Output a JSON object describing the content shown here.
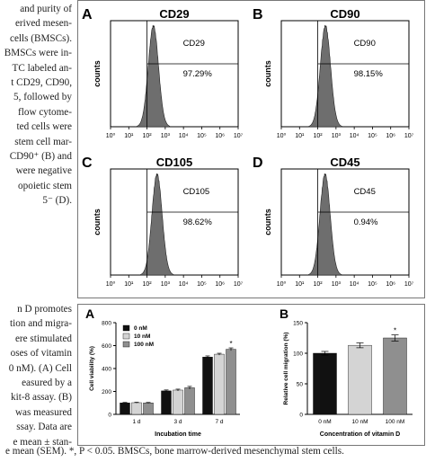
{
  "left_text_top": [
    "and purity of",
    "erived mesen-",
    "cells (BMSCs).",
    "BMSCs were in-",
    "TC labeled an-",
    "t CD29, CD90,",
    "5, followed by",
    "flow cytome-",
    "ted cells were",
    "stem cell mar-",
    "CD90⁺ (B) and",
    "were negative",
    "opoietic stem",
    "5⁻ (D)."
  ],
  "left_text_mid": [
    "n D promotes",
    "tion and migra-",
    "ere stimulated",
    "oses of vitamin",
    "0 nM). (A) Cell",
    "easured by a",
    "kit-8 assay. (B)",
    "was measured",
    "ssay. Data are",
    "e mean ± stan-"
  ],
  "caption": "e mean (SEM). *, P < 0.05. BMSCs, bone marrow-derived mesenchymal stem cells.",
  "flow_panels": [
    {
      "letter": "A",
      "title": "CD29",
      "gate_label": "CD29",
      "percent": "97.29%"
    },
    {
      "letter": "B",
      "title": "CD90",
      "gate_label": "CD90",
      "percent": "98.15%"
    },
    {
      "letter": "C",
      "title": "CD105",
      "gate_label": "CD105",
      "percent": "98.62%"
    },
    {
      "letter": "D",
      "title": "CD45",
      "gate_label": "CD45",
      "percent": "0.94%"
    }
  ],
  "flow_axes": {
    "ylabel": "counts",
    "xticks": [
      "10⁰",
      "10¹",
      "10²",
      "10³",
      "10⁴",
      "10⁵",
      "10⁶",
      "10⁷"
    ]
  },
  "colors": {
    "hist": "#6e6e6e",
    "bar_0": "#111111",
    "bar_10": "#d4d4d4",
    "bar_100": "#8f8f8f"
  },
  "chart_data": [
    {
      "type": "bar",
      "panel_letter": "A",
      "ylabel": "Cell viability (%)",
      "xlabel": "Incubation time",
      "ylim": [
        0,
        800
      ],
      "yticks": [
        "0",
        "200",
        "400",
        "600",
        "800"
      ],
      "categories": [
        "1 d",
        "3 d",
        "7 d"
      ],
      "legend": [
        "0 nM",
        "10 nM",
        "100 nM"
      ],
      "series": [
        {
          "name": "0 nM",
          "values": [
            100,
            205,
            500
          ]
        },
        {
          "name": "10 nM",
          "values": [
            102,
            212,
            525
          ]
        },
        {
          "name": "100 nM",
          "values": [
            100,
            232,
            568
          ]
        }
      ],
      "errors": [
        [
          4,
          8,
          10
        ],
        [
          4,
          8,
          8
        ],
        [
          4,
          12,
          12
        ]
      ],
      "significance": [
        [],
        [],
        [
          "",
          "",
          "*"
        ]
      ]
    },
    {
      "type": "bar",
      "panel_letter": "B",
      "ylabel": "Relative cell migration (%)",
      "xlabel": "Concentration of vitamin D",
      "ylim": [
        0,
        150
      ],
      "yticks": [
        "0",
        "50",
        "100",
        "150"
      ],
      "categories": [
        "0 nM",
        "10 nM",
        "100 nM"
      ],
      "values": [
        100,
        113,
        125
      ],
      "errors": [
        3,
        4,
        5
      ],
      "significance": [
        "",
        "",
        "*"
      ]
    }
  ]
}
